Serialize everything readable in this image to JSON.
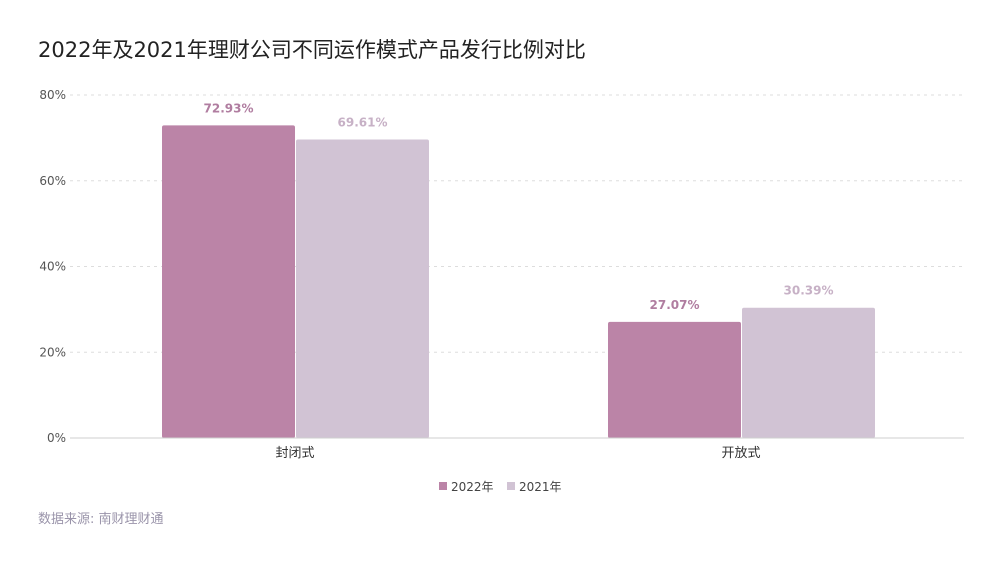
{
  "title": "2022年及2021年理财公司不同运作模式产品发行比例对比",
  "source": "数据来源: 南财理财通",
  "colors": {
    "series_2022": "#bb84a7",
    "series_2021": "#d1c3d4",
    "label_2022": "#b07da0",
    "label_2021": "#c7b1c6"
  },
  "chart_data": {
    "type": "bar",
    "categories": [
      "封闭式",
      "开放式"
    ],
    "series": [
      {
        "name": "2022年",
        "values": [
          72.93,
          27.07
        ],
        "labels": [
          "72.93%",
          "27.07%"
        ]
      },
      {
        "name": "2021年",
        "values": [
          69.61,
          30.39
        ],
        "labels": [
          "69.61%",
          "30.39%"
        ]
      }
    ],
    "ylim": [
      0,
      80
    ],
    "yticks": [
      "0%",
      "20%",
      "40%",
      "60%",
      "80%"
    ],
    "grid": true,
    "legend": "bottom-center"
  }
}
